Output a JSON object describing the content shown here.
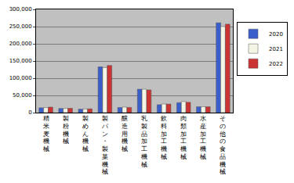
{
  "chart_data": {
    "type": "bar",
    "categories": [
      "精米麦機械",
      "製粉機械",
      "製めん機械",
      "製パン・製菓機械",
      "醸造用機械",
      "乳製品加工機械",
      "飲料加工機械",
      "肉類加工機械",
      "水産加工機械",
      "その他の食品機械"
    ],
    "series": [
      {
        "name": "2020",
        "color": "#3a5fcd",
        "values": [
          14000,
          12000,
          10000,
          133000,
          15000,
          68000,
          23000,
          29000,
          17000,
          261000
        ]
      },
      {
        "name": "2021",
        "color": "#f5f5e6",
        "values": [
          14500,
          12000,
          10500,
          131000,
          16000,
          68000,
          25000,
          32000,
          17000,
          250000
        ]
      },
      {
        "name": "2022",
        "color": "#cc3333",
        "values": [
          16000,
          12500,
          11000,
          137000,
          15000,
          66000,
          25000,
          30000,
          17000,
          257000
        ]
      }
    ],
    "ylim": [
      0,
      300000
    ],
    "yticks": [
      0,
      {
        "value": 50000,
        "label": "50,000"
      },
      {
        "value": 100000,
        "label": "100,000"
      },
      {
        "value": 150000,
        "label": "150,000"
      },
      {
        "value": 200000,
        "label": "200,000"
      },
      {
        "value": 250000,
        "label": "250,000"
      },
      {
        "value": 300000,
        "label": "300,000"
      }
    ],
    "grid": true,
    "legend": "right"
  }
}
